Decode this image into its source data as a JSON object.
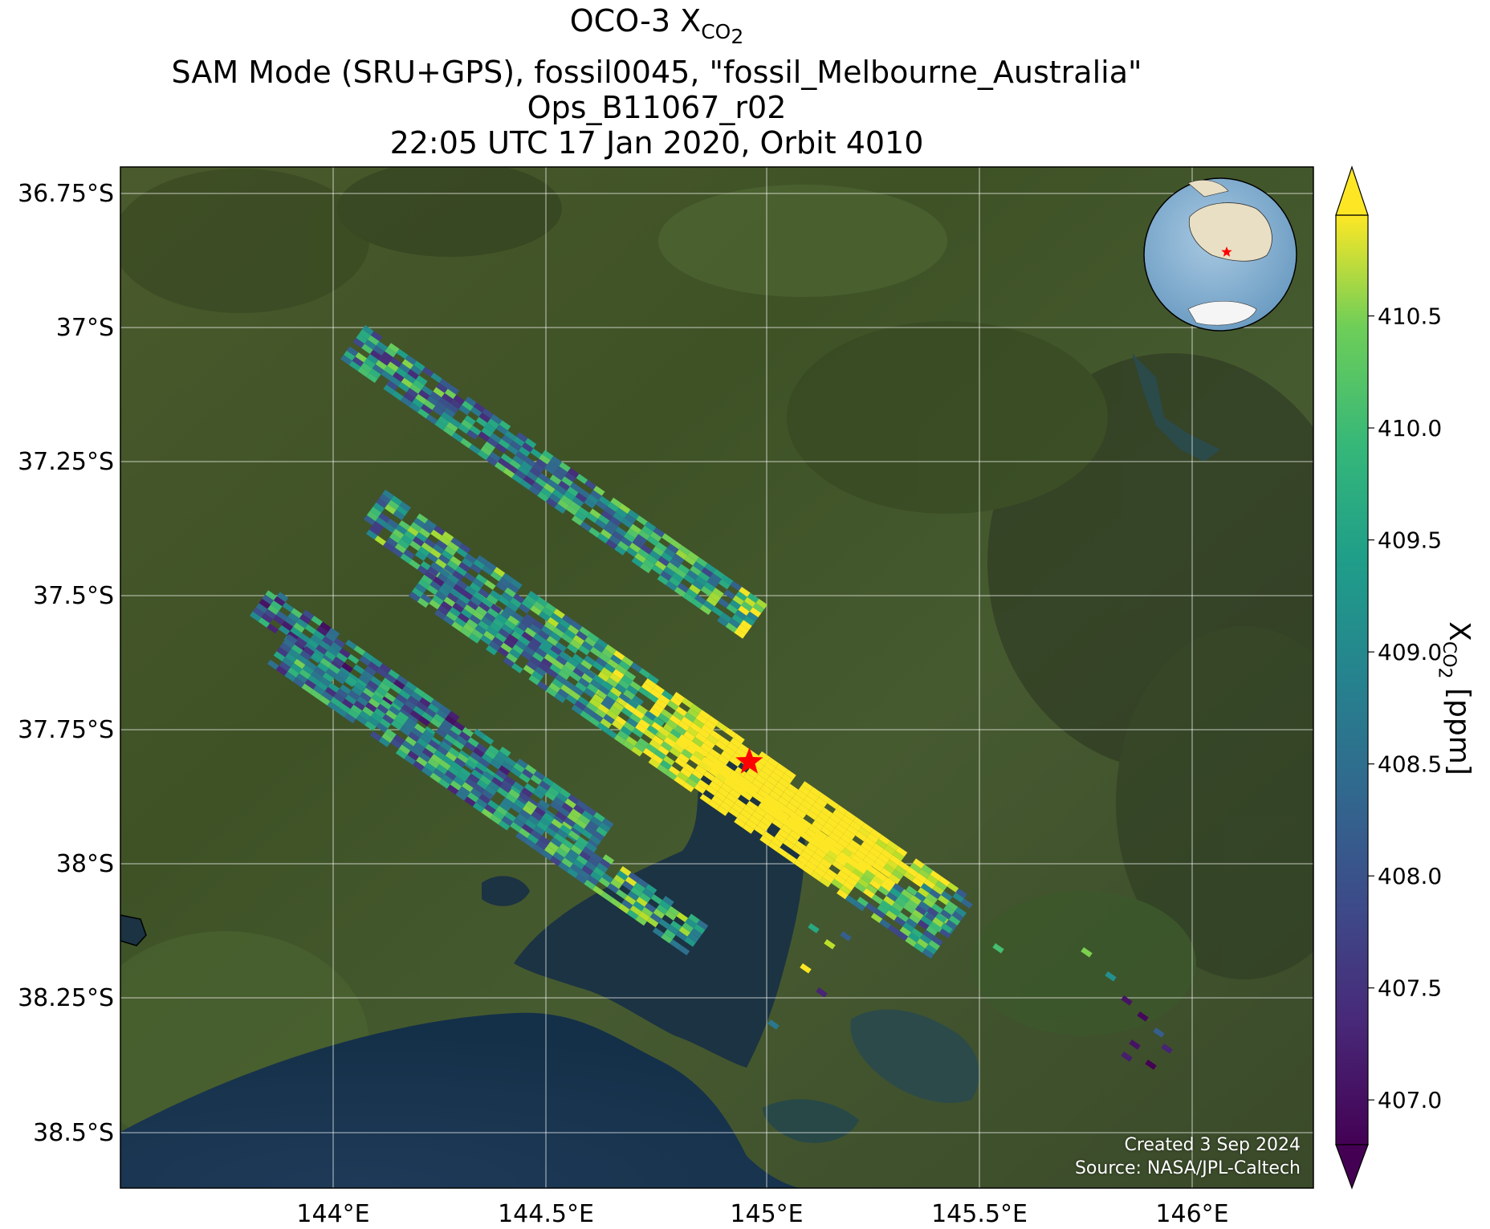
{
  "title": {
    "line1_prefix": "OCO-3 X",
    "line1_sub": "CO",
    "line1_sub2": "2",
    "line2": "SAM Mode (SRU+GPS), fossil0045, \"fossil_Melbourne_Australia\"",
    "line3": "Ops_B11067_r02",
    "line4": "22:05 UTC 17 Jan 2020, Orbit 4010"
  },
  "credit": {
    "created": "Created 3 Sep 2024",
    "source": "Source: NASA/JPL-Caltech"
  },
  "colorbar": {
    "label_prefix": "X",
    "label_sub": "CO",
    "label_sub2": "2",
    "label_suffix": " [ppm]",
    "min": 406.8,
    "max": 410.95,
    "ticks": [
      "410.5",
      "410.0",
      "409.5",
      "409.0",
      "408.5",
      "408.0",
      "407.5",
      "407.0"
    ],
    "extend": "both",
    "colormap": "viridis"
  },
  "chart_data": {
    "type": "heatmap",
    "projection": "map",
    "lon_range": [
      143.5,
      146.3
    ],
    "lat_range": [
      -38.6,
      -36.7
    ],
    "lat_ticks": [
      "36.75°S",
      "37°S",
      "37.25°S",
      "37.5°S",
      "37.75°S",
      "38°S",
      "38.25°S",
      "38.5°S"
    ],
    "lon_ticks": [
      "144°E",
      "144.5°E",
      "145°E",
      "145.5°E",
      "146°E"
    ],
    "grid": true,
    "target": {
      "name": "fossil_Melbourne_Australia",
      "lon": 144.96,
      "lat": -37.81,
      "marker": "red-star"
    },
    "inset": "globe-locator-top-right",
    "colors": {
      "marker": "#ff0000"
    }
  }
}
